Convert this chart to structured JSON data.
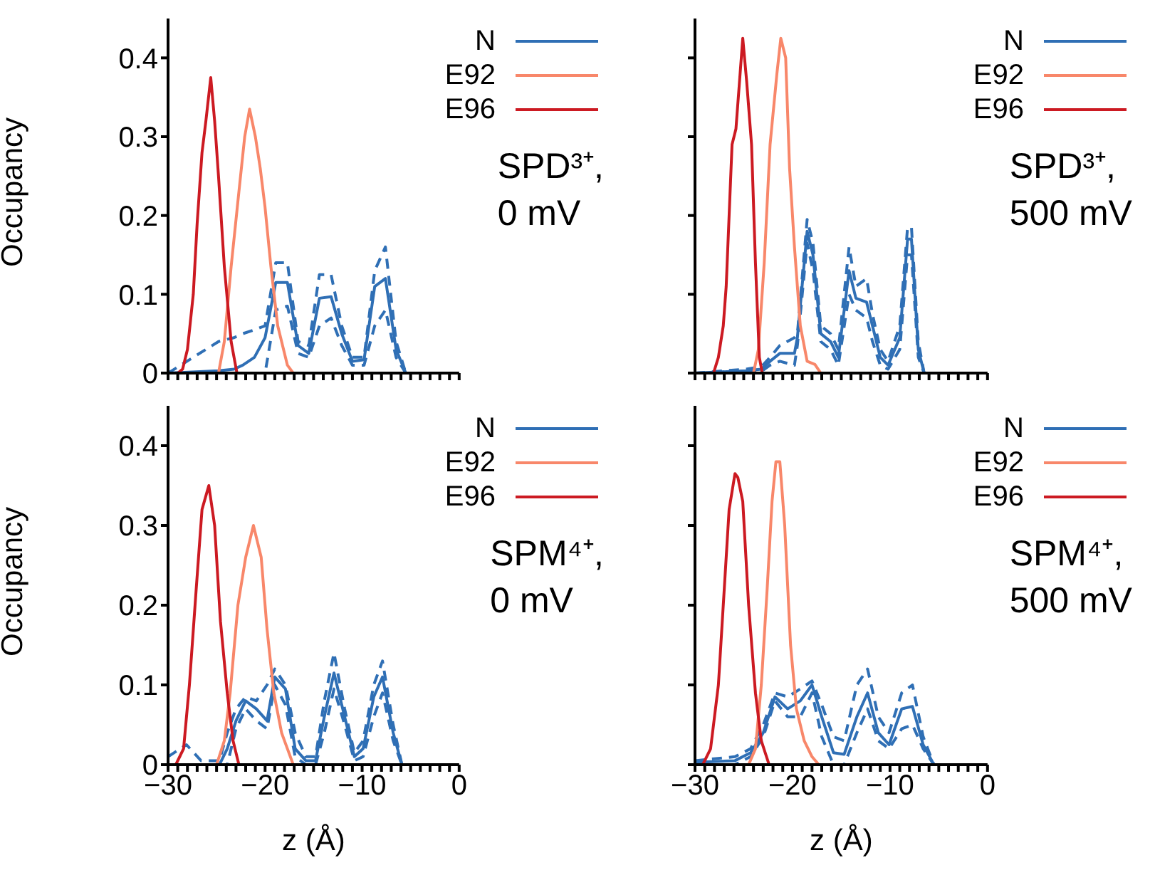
{
  "chart_data": [
    {
      "type": "line",
      "ylabel": "Occupancy",
      "xlim": [
        -30,
        0
      ],
      "ylim": [
        0,
        0.45
      ],
      "yticks": [
        0,
        0.1,
        0.2,
        0.3,
        0.4
      ],
      "xticks": [
        -30,
        -29,
        -28,
        -27,
        -26,
        -25,
        -24,
        -23,
        -22,
        -21,
        -20,
        -19,
        -18,
        -17,
        -16,
        -15,
        -14,
        -13,
        -12,
        -11,
        -10,
        -9,
        -8,
        -7,
        -6,
        -5,
        -4,
        -3,
        -2,
        -1,
        0
      ],
      "tick_labels": "y",
      "legend": "top right",
      "annotations": [
        "SPD³⁺,",
        "0 mV"
      ],
      "series": [
        {
          "name": "N",
          "color": "#2f6fb5",
          "x": [
            -30,
            -24.8,
            -23.2,
            -22.3,
            -21.1,
            -20,
            -18.9,
            -17.7,
            -16.6,
            -15.5,
            -14.4,
            -13.2,
            -12.1,
            -11,
            -9.8,
            -8.7,
            -7.6,
            -6.5,
            -5.5
          ],
          "values": [
            0,
            0.003,
            0.005,
            0.01,
            0.02,
            0.045,
            0.115,
            0.115,
            0.035,
            0.025,
            0.095,
            0.097,
            0.05,
            0.015,
            0.017,
            0.11,
            0.12,
            0.03,
            0
          ]
        },
        {
          "color": "#2f6fb5",
          "line_style": "dashed",
          "x": [
            -30,
            -24.8,
            -23.2,
            -22.3,
            -21.1,
            -20,
            -18.9,
            -17.7,
            -16.6,
            -15.5,
            -14.4,
            -13.2,
            -12.1,
            -11,
            -9.8,
            -8.7,
            -7.6,
            -6.5,
            -5.5
          ],
          "values": [
            0,
            0.04,
            0.045,
            0.05,
            0.055,
            0.06,
            0.14,
            0.14,
            0.04,
            0.035,
            0.125,
            0.125,
            0.06,
            0.02,
            0.02,
            0.13,
            0.16,
            0.04,
            0
          ]
        },
        {
          "color": "#2f6fb5",
          "line_style": "dashed",
          "x": [
            -30,
            -24.8,
            -23.2,
            -22.3,
            -21.1,
            -20,
            -18.9,
            -17.7,
            -16.6,
            -15.5,
            -14.4,
            -13.2,
            -12.1,
            -11,
            -9.8,
            -8.7,
            -7.6,
            -6.5,
            -5.5
          ],
          "values": [
            0,
            0,
            0,
            0,
            0,
            0,
            0.08,
            0.085,
            0.025,
            0.02,
            0.06,
            0.07,
            0.035,
            0.01,
            0.01,
            0.06,
            0.08,
            0.02,
            0
          ]
        },
        {
          "name": "E92",
          "color": "#f8876a",
          "x": [
            -24.8,
            -24.2,
            -23.5,
            -22.7,
            -22.1,
            -21.6,
            -21,
            -20.5,
            -20,
            -19.4,
            -18.7,
            -17.7,
            -17.1
          ],
          "values": [
            0,
            0.04,
            0.135,
            0.23,
            0.3,
            0.335,
            0.3,
            0.26,
            0.21,
            0.135,
            0.06,
            0.01,
            0
          ]
        },
        {
          "name": "E96",
          "color": "#cc1a22",
          "x": [
            -29,
            -28.5,
            -28,
            -27.4,
            -27,
            -26.5,
            -26.1,
            -25.6,
            -25.2,
            -24.8,
            -24.2,
            -23.5,
            -22.9
          ],
          "values": [
            0,
            0.005,
            0.03,
            0.1,
            0.19,
            0.28,
            0.32,
            0.375,
            0.32,
            0.25,
            0.135,
            0.04,
            0
          ]
        }
      ]
    },
    {
      "type": "line",
      "xlim": [
        -30,
        0
      ],
      "ylim": [
        0,
        0.45
      ],
      "yticks": [
        0,
        0.1,
        0.2,
        0.3,
        0.4
      ],
      "xticks": [
        -30,
        -29,
        -28,
        -27,
        -26,
        -25,
        -24,
        -23,
        -22,
        -21,
        -20,
        -19,
        -18,
        -17,
        -16,
        -15,
        -14,
        -13,
        -12,
        -11,
        -10,
        -9,
        -8,
        -7,
        -6,
        -5,
        -4,
        -3,
        -2,
        -1,
        0
      ],
      "tick_labels": false,
      "legend": "top right",
      "annotations": [
        "SPD³⁺,",
        "500 mV"
      ],
      "series": [
        {
          "name": "N",
          "color": "#2f6fb5",
          "x": [
            -30,
            -24.8,
            -23.2,
            -22.3,
            -21.3,
            -19.8,
            -19.5,
            -18.5,
            -17.9,
            -17.1,
            -16.1,
            -15.3,
            -14.2,
            -13.5,
            -12.4,
            -11.8,
            -11,
            -10.2,
            -9,
            -8.2,
            -7.8,
            -7.1,
            -6.5
          ],
          "values": [
            0,
            0.003,
            0.005,
            0.015,
            0.025,
            0.025,
            0.045,
            0.18,
            0.15,
            0.05,
            0.04,
            0.02,
            0.13,
            0.095,
            0.09,
            0.06,
            0.02,
            0.01,
            0.045,
            0.17,
            0.17,
            0.03,
            0
          ]
        },
        {
          "color": "#2f6fb5",
          "line_style": "dashed",
          "x": [
            -30,
            -24.8,
            -23.2,
            -22.3,
            -21.3,
            -19.8,
            -19.5,
            -18.5,
            -17.9,
            -17.1,
            -16.1,
            -15.3,
            -14.2,
            -13.5,
            -12.4,
            -11.8,
            -11,
            -10.2,
            -9,
            -8.2,
            -7.8,
            -7.1,
            -6.5
          ],
          "values": [
            0,
            0.005,
            0.008,
            0.02,
            0.035,
            0.045,
            0.05,
            0.195,
            0.165,
            0.06,
            0.05,
            0.03,
            0.16,
            0.11,
            0.12,
            0.075,
            0.03,
            0.015,
            0.06,
            0.185,
            0.185,
            0.04,
            0
          ]
        },
        {
          "color": "#2f6fb5",
          "line_style": "dashed",
          "x": [
            -30,
            -24.8,
            -23.2,
            -22.3,
            -21.3,
            -19.8,
            -19.5,
            -18.5,
            -17.9,
            -17.1,
            -16.1,
            -15.3,
            -14.2,
            -13.5,
            -12.4,
            -11.8,
            -11,
            -10.2,
            -9,
            -8.2,
            -7.8,
            -7.1,
            -6.5
          ],
          "values": [
            0,
            0,
            0.002,
            0.01,
            0.015,
            0.01,
            0.035,
            0.165,
            0.13,
            0.04,
            0.03,
            0.01,
            0.1,
            0.08,
            0.07,
            0.04,
            0.01,
            0.005,
            0.03,
            0.15,
            0.15,
            0.02,
            0
          ]
        },
        {
          "name": "E92",
          "color": "#f8876a",
          "x": [
            -24,
            -23.5,
            -22.9,
            -22.3,
            -21.6,
            -21.2,
            -20.7,
            -20.3,
            -19.8,
            -19.2,
            -18.5,
            -17.7,
            -17.1
          ],
          "values": [
            0,
            0.03,
            0.14,
            0.29,
            0.38,
            0.425,
            0.4,
            0.26,
            0.16,
            0.06,
            0.015,
            0.011,
            0
          ]
        },
        {
          "name": "E96",
          "color": "#cc1a22",
          "x": [
            -28.1,
            -27.6,
            -27.1,
            -26.8,
            -26.2,
            -25.8,
            -25.1,
            -24.7,
            -24.2,
            -23.8,
            -23.4,
            -23.1
          ],
          "values": [
            0,
            0.02,
            0.06,
            0.11,
            0.29,
            0.31,
            0.425,
            0.37,
            0.29,
            0.14,
            0.02,
            0
          ]
        }
      ]
    },
    {
      "type": "line",
      "ylabel": "Occupancy",
      "xlabel": "z (Å)",
      "xlim": [
        -30,
        0
      ],
      "ylim": [
        0,
        0.45
      ],
      "yticks": [
        0,
        0.1,
        0.2,
        0.3,
        0.4
      ],
      "xticks": [
        {
          "value": -30,
          "label": "−30"
        },
        {
          "value": -29,
          "label": null
        },
        {
          "value": -28,
          "label": null
        },
        {
          "value": -27,
          "label": null
        },
        {
          "value": -26,
          "label": null
        },
        {
          "value": -25,
          "label": null
        },
        {
          "value": -24,
          "label": null
        },
        {
          "value": -23,
          "label": null
        },
        {
          "value": -22,
          "label": null
        },
        {
          "value": -21,
          "label": null
        },
        {
          "value": -20,
          "label": "−20"
        },
        {
          "value": -19,
          "label": null
        },
        {
          "value": -18,
          "label": null
        },
        {
          "value": -17,
          "label": null
        },
        {
          "value": -16,
          "label": null
        },
        {
          "value": -15,
          "label": null
        },
        {
          "value": -14,
          "label": null
        },
        {
          "value": -13,
          "label": null
        },
        {
          "value": -12,
          "label": null
        },
        {
          "value": -11,
          "label": null
        },
        {
          "value": -10,
          "label": "−10"
        },
        {
          "value": -9,
          "label": null
        },
        {
          "value": -8,
          "label": null
        },
        {
          "value": -7,
          "label": null
        },
        {
          "value": -6,
          "label": null
        },
        {
          "value": -5,
          "label": null
        },
        {
          "value": -4,
          "label": null
        },
        {
          "value": -3,
          "label": null
        },
        {
          "value": -2,
          "label": null
        },
        {
          "value": -1,
          "label": null
        },
        0
      ],
      "legend": "top right",
      "annotations": [
        "SPM⁴⁺,",
        "0 mV"
      ],
      "series": [
        {
          "name": "N",
          "color": "#2f6fb5",
          "x": [
            -30,
            -28.1,
            -26.6,
            -24.7,
            -23.9,
            -23,
            -22,
            -20.9,
            -19.8,
            -19,
            -17.9,
            -16.9,
            -15.8,
            -14.8,
            -13.9,
            -12.9,
            -11.8,
            -10.8,
            -9.9,
            -8.8,
            -7.9,
            -6.8,
            -5.9
          ],
          "values": [
            0,
            0,
            0,
            0,
            0.02,
            0.055,
            0.08,
            0.07,
            0.055,
            0.11,
            0.095,
            0.02,
            0.005,
            0.005,
            0.06,
            0.115,
            0.06,
            0.01,
            0.02,
            0.085,
            0.11,
            0.04,
            0
          ]
        },
        {
          "color": "#2f6fb5",
          "line_style": "dashed",
          "x": [
            -30,
            -28.1,
            -26.6,
            -24.7,
            -23.9,
            -23,
            -22,
            -20.9,
            -19.8,
            -19,
            -17.9,
            -16.9,
            -15.8,
            -14.8,
            -13.9,
            -12.9,
            -11.8,
            -10.8,
            -9.9,
            -8.8,
            -7.9,
            -6.8,
            -5.9
          ],
          "values": [
            0.01,
            0.025,
            0.005,
            0.005,
            0.04,
            0.07,
            0.085,
            0.08,
            0.1,
            0.12,
            0.1,
            0.04,
            0.01,
            0.01,
            0.08,
            0.14,
            0.07,
            0.015,
            0.03,
            0.1,
            0.13,
            0.05,
            0
          ]
        },
        {
          "color": "#2f6fb5",
          "line_style": "dashed",
          "x": [
            -30,
            -28.1,
            -26.6,
            -24.7,
            -23.9,
            -23,
            -22,
            -20.9,
            -19.8,
            -19,
            -17.9,
            -16.9,
            -15.8,
            -14.8,
            -13.9,
            -12.9,
            -11.8,
            -10.8,
            -9.9,
            -8.8,
            -7.9,
            -6.8,
            -5.9
          ],
          "values": [
            0,
            0,
            0,
            0,
            0,
            0.045,
            0.07,
            0.055,
            0.045,
            0.1,
            0.075,
            0.01,
            0,
            0,
            0.04,
            0.095,
            0.05,
            0.005,
            0.01,
            0.06,
            0.09,
            0.03,
            0
          ]
        },
        {
          "name": "E92",
          "color": "#f8876a",
          "x": [
            -25,
            -24.2,
            -23.6,
            -22.8,
            -22,
            -21.2,
            -20.4,
            -19.8,
            -19.1,
            -18.3,
            -17.7,
            -17.1
          ],
          "values": [
            0,
            0.03,
            0.09,
            0.2,
            0.26,
            0.3,
            0.26,
            0.17,
            0.09,
            0.04,
            0.02,
            0
          ]
        },
        {
          "name": "E96",
          "color": "#cc1a22",
          "x": [
            -29.2,
            -28.4,
            -27.8,
            -27.1,
            -26.5,
            -25.8,
            -25.2,
            -24.6,
            -23.9,
            -23.3,
            -22.7
          ],
          "values": [
            0,
            0.02,
            0.1,
            0.22,
            0.32,
            0.35,
            0.3,
            0.18,
            0.09,
            0.03,
            0
          ]
        }
      ]
    },
    {
      "type": "line",
      "xlabel": "z (Å)",
      "xlim": [
        -30,
        0
      ],
      "ylim": [
        0,
        0.45
      ],
      "yticks": [
        0,
        0.1,
        0.2,
        0.3,
        0.4
      ],
      "xticks": [
        {
          "value": -30,
          "label": "−30"
        },
        {
          "value": -29,
          "label": null
        },
        {
          "value": -28,
          "label": null
        },
        {
          "value": -27,
          "label": null
        },
        {
          "value": -26,
          "label": null
        },
        {
          "value": -25,
          "label": null
        },
        {
          "value": -24,
          "label": null
        },
        {
          "value": -23,
          "label": null
        },
        {
          "value": -22,
          "label": null
        },
        {
          "value": -21,
          "label": null
        },
        {
          "value": -20,
          "label": "−20"
        },
        {
          "value": -19,
          "label": null
        },
        {
          "value": -18,
          "label": null
        },
        {
          "value": -17,
          "label": null
        },
        {
          "value": -16,
          "label": null
        },
        {
          "value": -15,
          "label": null
        },
        {
          "value": -14,
          "label": null
        },
        {
          "value": -13,
          "label": null
        },
        {
          "value": -12,
          "label": null
        },
        {
          "value": -11,
          "label": null
        },
        {
          "value": -10,
          "label": "−10"
        },
        {
          "value": -9,
          "label": null
        },
        {
          "value": -8,
          "label": null
        },
        {
          "value": -7,
          "label": null
        },
        {
          "value": -6,
          "label": null
        },
        {
          "value": -5,
          "label": null
        },
        {
          "value": -4,
          "label": null
        },
        {
          "value": -3,
          "label": null
        },
        {
          "value": -2,
          "label": null
        },
        {
          "value": -1,
          "label": null
        },
        0
      ],
      "tick_labels": "x",
      "legend": "top right",
      "annotations": [
        "SPM⁴⁺,",
        "500 mV"
      ],
      "series": [
        {
          "name": "N",
          "color": "#2f6fb5",
          "x": [
            -30,
            -25.9,
            -24.3,
            -23,
            -21.8,
            -20.5,
            -19.2,
            -18,
            -17,
            -15.8,
            -14.7,
            -13.4,
            -12.3,
            -11.2,
            -10.1,
            -8.8,
            -7.7,
            -6.6,
            -5.5
          ],
          "values": [
            0.003,
            0.005,
            0.015,
            0.04,
            0.085,
            0.07,
            0.08,
            0.1,
            0.06,
            0.015,
            0.013,
            0.06,
            0.09,
            0.04,
            0.025,
            0.07,
            0.073,
            0.025,
            0
          ]
        },
        {
          "color": "#2f6fb5",
          "line_style": "dashed",
          "x": [
            -30,
            -25.9,
            -24.3,
            -23,
            -21.8,
            -20.5,
            -19.2,
            -18,
            -17,
            -15.8,
            -14.7,
            -13.4,
            -12.3,
            -11.2,
            -10.1,
            -8.8,
            -7.7,
            -6.6,
            -5.5
          ],
          "values": [
            0.005,
            0.01,
            0.02,
            0.05,
            0.09,
            0.085,
            0.095,
            0.105,
            0.075,
            0.035,
            0.03,
            0.1,
            0.12,
            0.06,
            0.04,
            0.09,
            0.1,
            0.035,
            0
          ]
        },
        {
          "color": "#2f6fb5",
          "line_style": "dashed",
          "x": [
            -30,
            -25.9,
            -24.3,
            -23,
            -21.8,
            -20.5,
            -19.2,
            -18,
            -17,
            -15.8,
            -14.7,
            -13.4,
            -12.3,
            -11.2,
            -10.1,
            -8.8,
            -7.7,
            -6.6,
            -5.5
          ],
          "values": [
            0,
            0,
            0.01,
            0.035,
            0.08,
            0.06,
            0.06,
            0.09,
            0.035,
            0,
            0,
            0.04,
            0.07,
            0.03,
            0.02,
            0.045,
            0.05,
            0.02,
            0
          ]
        },
        {
          "name": "E92",
          "color": "#f8876a",
          "x": [
            -24.5,
            -23.8,
            -23.2,
            -22.6,
            -22.1,
            -21.7,
            -21.3,
            -20.8,
            -20.2,
            -19.6,
            -18.8,
            -18,
            -17.3
          ],
          "values": [
            0,
            0.02,
            0.1,
            0.22,
            0.33,
            0.38,
            0.38,
            0.3,
            0.15,
            0.07,
            0.03,
            0.01,
            0
          ]
        },
        {
          "name": "E96",
          "color": "#cc1a22",
          "x": [
            -29.2,
            -28.4,
            -27.6,
            -27,
            -26.5,
            -25.9,
            -25.6,
            -25.1,
            -24.5,
            -23.8,
            -23.2,
            -22.4
          ],
          "values": [
            0,
            0.02,
            0.1,
            0.22,
            0.32,
            0.365,
            0.36,
            0.33,
            0.2,
            0.09,
            0.03,
            0
          ]
        }
      ]
    }
  ]
}
